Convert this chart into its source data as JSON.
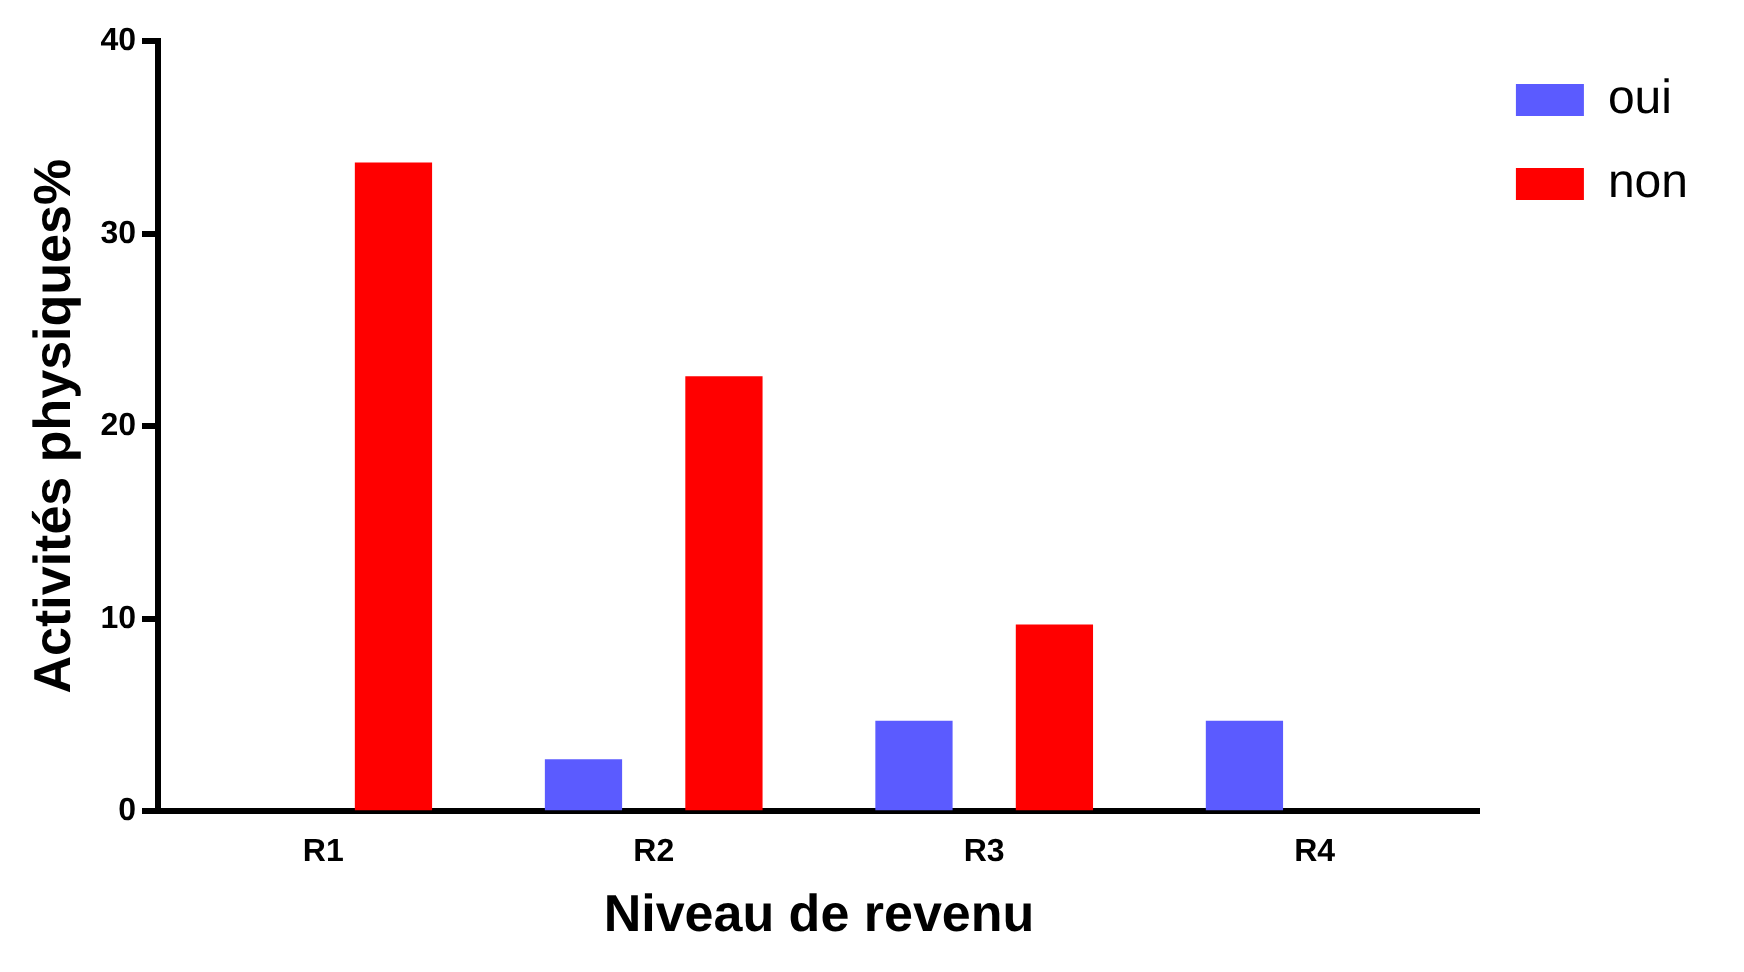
{
  "chart_data": {
    "type": "bar",
    "xlabel": "Niveau de revenu",
    "ylabel": "Activités physiques%",
    "categories": [
      "R1",
      "R2",
      "R3",
      "R4"
    ],
    "series": [
      {
        "name": "oui",
        "color": "#5b5bff",
        "values": [
          null,
          2.7,
          4.7,
          4.7
        ]
      },
      {
        "name": "non",
        "color": "#ff0000",
        "values": [
          33.7,
          22.6,
          9.7,
          null
        ]
      }
    ],
    "ylim": [
      0,
      40
    ],
    "yticks": [
      0,
      10,
      20,
      30,
      40
    ],
    "grid": false,
    "legend": "top right"
  }
}
